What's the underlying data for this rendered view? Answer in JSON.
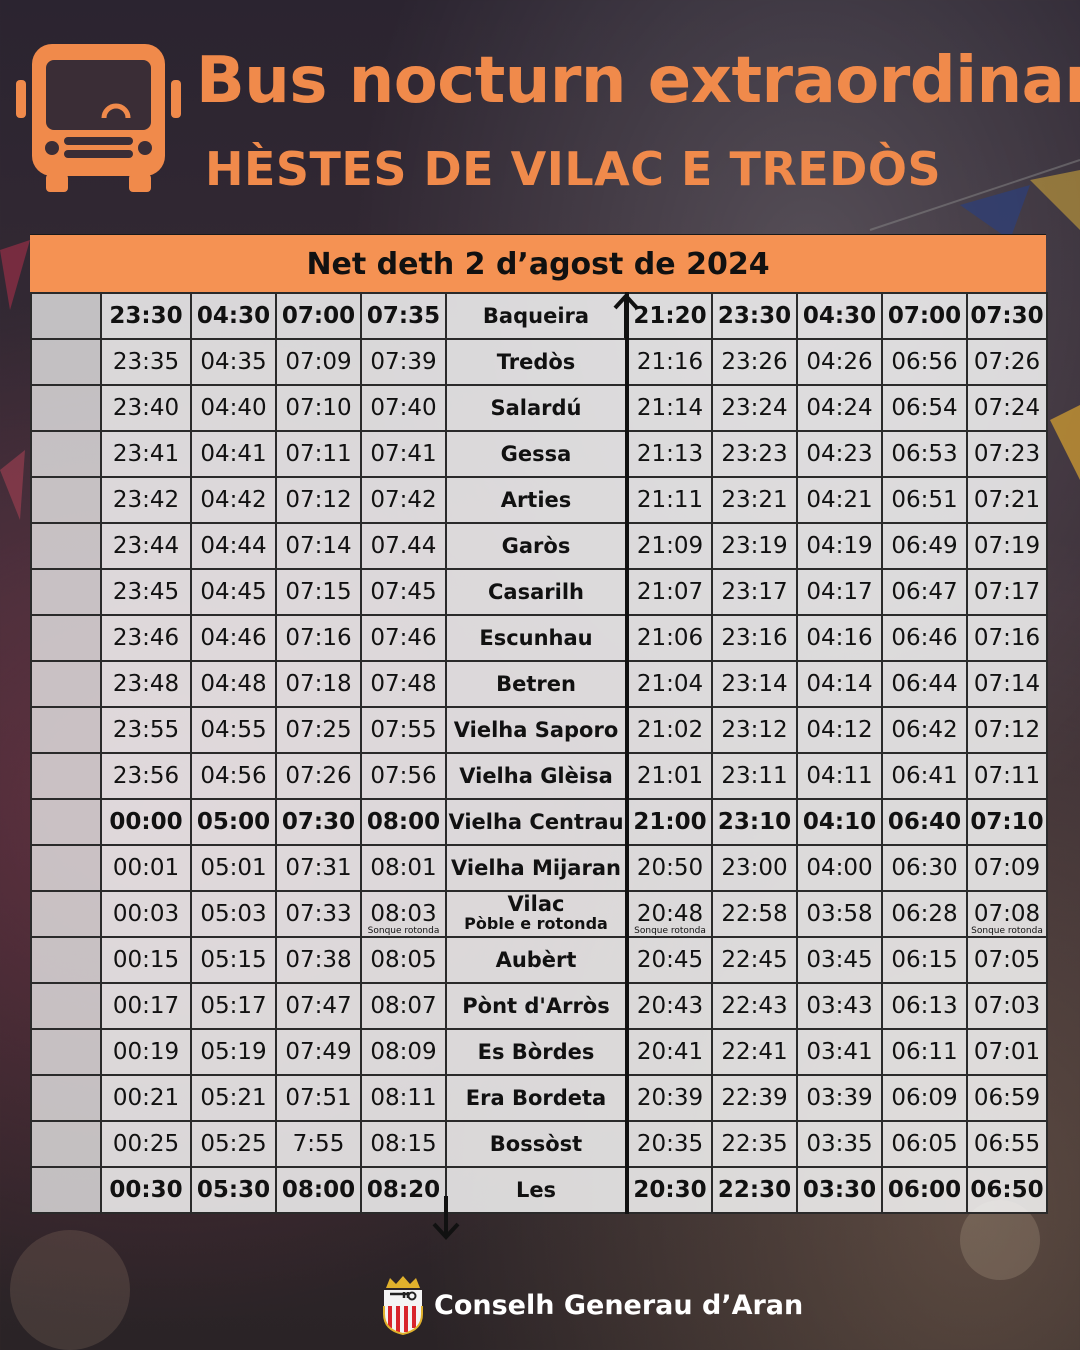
{
  "header": {
    "title": "Bus nocturn extraordinari",
    "subtitle": "HÈSTES DE VILAC E TREDÒS",
    "date": "Net deth 2 d’agost de 2024"
  },
  "timetable": {
    "rows": [
      {
        "out": [
          "23:30",
          "04:30",
          "07:00",
          "07:35"
        ],
        "stop": "Baqueira",
        "back": [
          "21:20",
          "23:30",
          "04:30",
          "07:00",
          "07:30"
        ],
        "bold": true
      },
      {
        "out": [
          "23:35",
          "04:35",
          "07:09",
          "07:39"
        ],
        "stop": "Tredòs",
        "back": [
          "21:16",
          "23:26",
          "04:26",
          "06:56",
          "07:26"
        ]
      },
      {
        "out": [
          "23:40",
          "04:40",
          "07:10",
          "07:40"
        ],
        "stop": "Salardú",
        "back": [
          "21:14",
          "23:24",
          "04:24",
          "06:54",
          "07:24"
        ]
      },
      {
        "out": [
          "23:41",
          "04:41",
          "07:11",
          "07:41"
        ],
        "stop": "Gessa",
        "back": [
          "21:13",
          "23:23",
          "04:23",
          "06:53",
          "07:23"
        ]
      },
      {
        "out": [
          "23:42",
          "04:42",
          "07:12",
          "07:42"
        ],
        "stop": "Arties",
        "back": [
          "21:11",
          "23:21",
          "04:21",
          "06:51",
          "07:21"
        ]
      },
      {
        "out": [
          "23:44",
          "04:44",
          "07:14",
          "07.44"
        ],
        "stop": "Garòs",
        "back": [
          "21:09",
          "23:19",
          "04:19",
          "06:49",
          "07:19"
        ]
      },
      {
        "out": [
          "23:45",
          "04:45",
          "07:15",
          "07:45"
        ],
        "stop": "Casarilh",
        "back": [
          "21:07",
          "23:17",
          "04:17",
          "06:47",
          "07:17"
        ]
      },
      {
        "out": [
          "23:46",
          "04:46",
          "07:16",
          "07:46"
        ],
        "stop": "Escunhau",
        "back": [
          "21:06",
          "23:16",
          "04:16",
          "06:46",
          "07:16"
        ]
      },
      {
        "out": [
          "23:48",
          "04:48",
          "07:18",
          "07:48"
        ],
        "stop": "Betren",
        "back": [
          "21:04",
          "23:14",
          "04:14",
          "06:44",
          "07:14"
        ]
      },
      {
        "out": [
          "23:55",
          "04:55",
          "07:25",
          "07:55"
        ],
        "stop": "Vielha Saporo",
        "back": [
          "21:02",
          "23:12",
          "04:12",
          "06:42",
          "07:12"
        ]
      },
      {
        "out": [
          "23:56",
          "04:56",
          "07:26",
          "07:56"
        ],
        "stop": "Vielha Glèisa",
        "back": [
          "21:01",
          "23:11",
          "04:11",
          "06:41",
          "07:11"
        ]
      },
      {
        "out": [
          "00:00",
          "05:00",
          "07:30",
          "08:00"
        ],
        "stop": "Vielha Centrau",
        "back": [
          "21:00",
          "23:10",
          "04:10",
          "06:40",
          "07:10"
        ],
        "bold": true
      },
      {
        "out": [
          "00:01",
          "05:01",
          "07:31",
          "08:01"
        ],
        "stop": "Vielha Mijaran",
        "back": [
          "20:50",
          "23:00",
          "04:00",
          "06:30",
          "07:09"
        ]
      },
      {
        "out": [
          "00:03",
          "05:03",
          "07:33",
          "08:03"
        ],
        "stop": "Vilac",
        "stop_sub": "Pòble e rotonda",
        "back": [
          "20:48",
          "22:58",
          "03:58",
          "06:28",
          "07:08"
        ],
        "out_notes": [
          "",
          "",
          "",
          "Sonque rotonda"
        ],
        "back_notes": [
          "Sonque rotonda",
          "",
          "",
          "",
          "Sonque rotonda"
        ]
      },
      {
        "out": [
          "00:15",
          "05:15",
          "07:38",
          "08:05"
        ],
        "stop": "Aubèrt",
        "back": [
          "20:45",
          "22:45",
          "03:45",
          "06:15",
          "07:05"
        ]
      },
      {
        "out": [
          "00:17",
          "05:17",
          "07:47",
          "08:07"
        ],
        "stop": "Pònt d'Arròs",
        "back": [
          "20:43",
          "22:43",
          "03:43",
          "06:13",
          "07:03"
        ]
      },
      {
        "out": [
          "00:19",
          "05:19",
          "07:49",
          "08:09"
        ],
        "stop": "Es Bòrdes",
        "back": [
          "20:41",
          "22:41",
          "03:41",
          "06:11",
          "07:01"
        ]
      },
      {
        "out": [
          "00:21",
          "05:21",
          "07:51",
          "08:11"
        ],
        "stop": "Era Bordeta",
        "back": [
          "20:39",
          "22:39",
          "03:39",
          "06:09",
          "06:59"
        ]
      },
      {
        "out": [
          "00:25",
          "05:25",
          "7:55",
          "08:15"
        ],
        "stop": "Bossòst",
        "back": [
          "20:35",
          "22:35",
          "03:35",
          "06:05",
          "06:55"
        ]
      },
      {
        "out": [
          "00:30",
          "05:30",
          "08:00",
          "08:20"
        ],
        "stop": "Les",
        "back": [
          "20:30",
          "22:30",
          "03:30",
          "06:00",
          "06:50"
        ],
        "bold": true
      }
    ]
  },
  "footer": {
    "org": "Conselh Generau d’Aran"
  },
  "icons": {
    "bus": "bus-icon",
    "up": "arrow-up-icon",
    "down": "arrow-down-icon",
    "crest": "crest-icon"
  },
  "colors": {
    "accent": "#f08a4b",
    "date_bar": "#f59253",
    "grid": "#2a2a2a"
  }
}
